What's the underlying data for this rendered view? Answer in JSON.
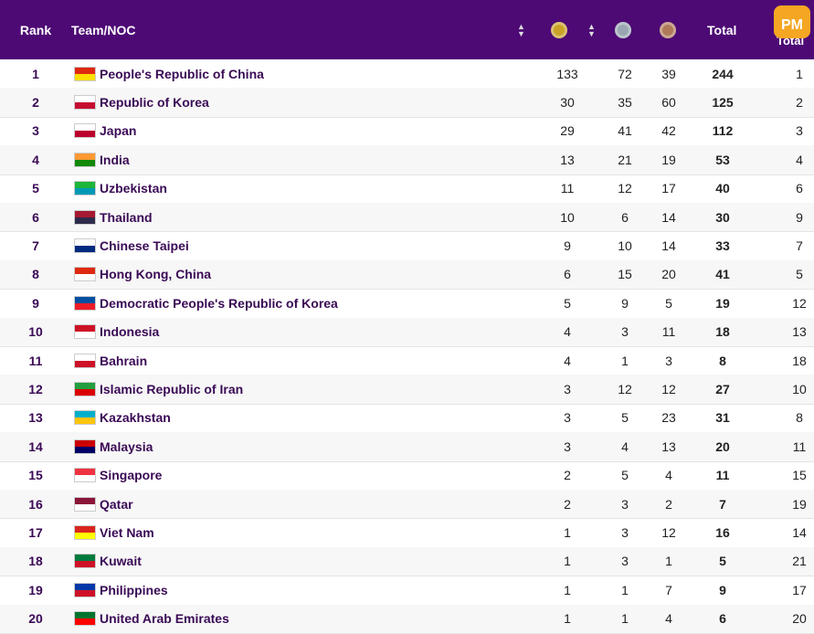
{
  "header": {
    "rank": "Rank",
    "team": "Team/NOC",
    "total": "Total",
    "nontotal": "Total",
    "gold_color": "#c9a227",
    "silver_color": "#9aa7b2",
    "bronze_color": "#b07a5a"
  },
  "rows": [
    {
      "rank": "1",
      "team": "People's Republic of China",
      "gold": "133",
      "silver": "72",
      "bronze": "39",
      "total": "244",
      "rank_by_total": "1",
      "flag": "china-flag"
    },
    {
      "rank": "2",
      "team": "Republic of Korea",
      "gold": "30",
      "silver": "35",
      "bronze": "60",
      "total": "125",
      "rank_by_total": "2",
      "flag": "korea-flag"
    },
    {
      "rank": "3",
      "team": "Japan",
      "gold": "29",
      "silver": "41",
      "bronze": "42",
      "total": "112",
      "rank_by_total": "3",
      "flag": "japan-flag"
    },
    {
      "rank": "4",
      "team": "India",
      "gold": "13",
      "silver": "21",
      "bronze": "19",
      "total": "53",
      "rank_by_total": "4",
      "flag": "india-flag"
    },
    {
      "rank": "5",
      "team": "Uzbekistan",
      "gold": "11",
      "silver": "12",
      "bronze": "17",
      "total": "40",
      "rank_by_total": "6",
      "flag": "uzbekistan-flag"
    },
    {
      "rank": "6",
      "team": "Thailand",
      "gold": "10",
      "silver": "6",
      "bronze": "14",
      "total": "30",
      "rank_by_total": "9",
      "flag": "thailand-flag"
    },
    {
      "rank": "7",
      "team": "Chinese Taipei",
      "gold": "9",
      "silver": "10",
      "bronze": "14",
      "total": "33",
      "rank_by_total": "7",
      "flag": "chinese-taipei-flag"
    },
    {
      "rank": "8",
      "team": "Hong Kong, China",
      "gold": "6",
      "silver": "15",
      "bronze": "20",
      "total": "41",
      "rank_by_total": "5",
      "flag": "hong-kong-flag"
    },
    {
      "rank": "9",
      "team": "Democratic People's Republic of Korea",
      "gold": "5",
      "silver": "9",
      "bronze": "5",
      "total": "19",
      "rank_by_total": "12",
      "flag": "dprk-flag"
    },
    {
      "rank": "10",
      "team": "Indonesia",
      "gold": "4",
      "silver": "3",
      "bronze": "11",
      "total": "18",
      "rank_by_total": "13",
      "flag": "indonesia-flag"
    },
    {
      "rank": "11",
      "team": "Bahrain",
      "gold": "4",
      "silver": "1",
      "bronze": "3",
      "total": "8",
      "rank_by_total": "18",
      "flag": "bahrain-flag"
    },
    {
      "rank": "12",
      "team": "Islamic Republic of Iran",
      "gold": "3",
      "silver": "12",
      "bronze": "12",
      "total": "27",
      "rank_by_total": "10",
      "flag": "iran-flag"
    },
    {
      "rank": "13",
      "team": "Kazakhstan",
      "gold": "3",
      "silver": "5",
      "bronze": "23",
      "total": "31",
      "rank_by_total": "8",
      "flag": "kazakhstan-flag"
    },
    {
      "rank": "14",
      "team": "Malaysia",
      "gold": "3",
      "silver": "4",
      "bronze": "13",
      "total": "20",
      "rank_by_total": "11",
      "flag": "malaysia-flag"
    },
    {
      "rank": "15",
      "team": "Singapore",
      "gold": "2",
      "silver": "5",
      "bronze": "4",
      "total": "11",
      "rank_by_total": "15",
      "flag": "singapore-flag"
    },
    {
      "rank": "16",
      "team": "Qatar",
      "gold": "2",
      "silver": "3",
      "bronze": "2",
      "total": "7",
      "rank_by_total": "19",
      "flag": "qatar-flag"
    },
    {
      "rank": "17",
      "team": "Viet Nam",
      "gold": "1",
      "silver": "3",
      "bronze": "12",
      "total": "16",
      "rank_by_total": "14",
      "flag": "vietnam-flag"
    },
    {
      "rank": "18",
      "team": "Kuwait",
      "gold": "1",
      "silver": "3",
      "bronze": "1",
      "total": "5",
      "rank_by_total": "21",
      "flag": "kuwait-flag"
    },
    {
      "rank": "19",
      "team": "Philippines",
      "gold": "1",
      "silver": "1",
      "bronze": "7",
      "total": "9",
      "rank_by_total": "17",
      "flag": "philippines-flag"
    },
    {
      "rank": "20",
      "team": "United Arab Emirates",
      "gold": "1",
      "silver": "1",
      "bronze": "4",
      "total": "6",
      "rank_by_total": "20",
      "flag": "uae-flag"
    }
  ]
}
